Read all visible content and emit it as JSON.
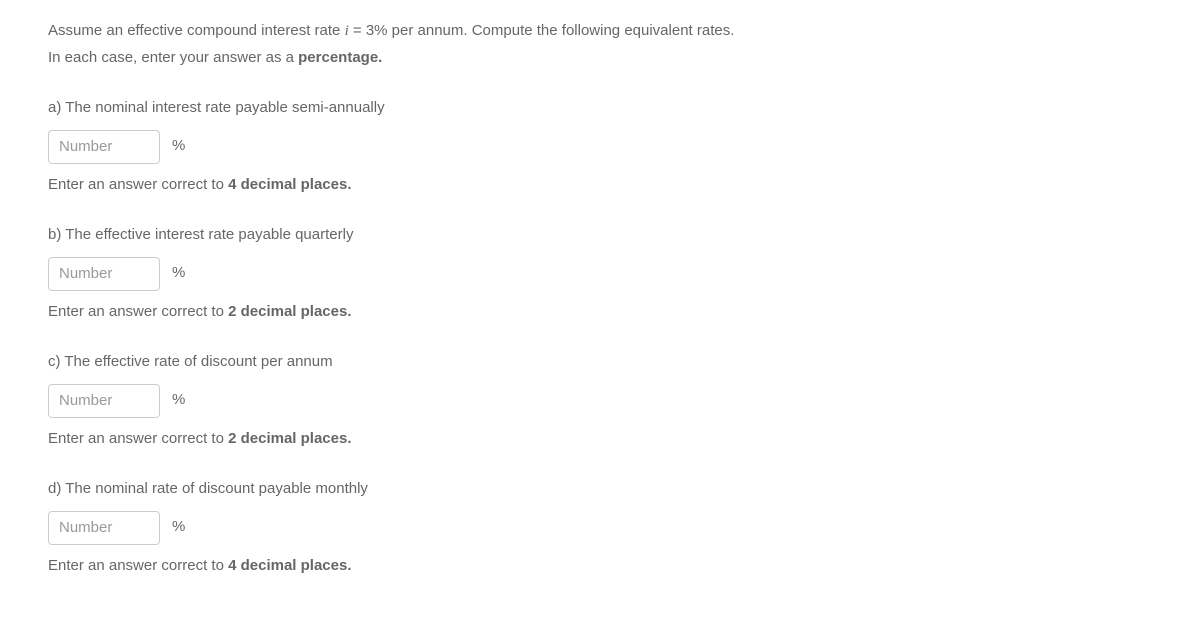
{
  "intro": {
    "line1_pre": "Assume an effective compound interest rate ",
    "line1_math_var": "i",
    "line1_math_eq": " = 3%",
    "line1_post": " per annum. Compute the following equivalent rates.",
    "line2_pre": "In each case, enter your answer as a ",
    "line2_bold": "percentage."
  },
  "questions": {
    "a": {
      "label": "a) The nominal interest rate payable semi-annually",
      "placeholder": "Number",
      "unit": "%",
      "hint_pre": "Enter an answer correct to ",
      "hint_bold": "4 decimal places."
    },
    "b": {
      "label": "b) The effective interest rate payable quarterly",
      "placeholder": "Number",
      "unit": "%",
      "hint_pre": "Enter an answer correct to ",
      "hint_bold": "2 decimal places."
    },
    "c": {
      "label": "c) The effective rate of discount per annum",
      "placeholder": "Number",
      "unit": "%",
      "hint_pre": "Enter an answer correct to ",
      "hint_bold": "2 decimal places."
    },
    "d": {
      "label": "d) The nominal rate of discount payable monthly",
      "placeholder": "Number",
      "unit": "%",
      "hint_pre": "Enter an answer correct to ",
      "hint_bold": "4 decimal places."
    }
  }
}
